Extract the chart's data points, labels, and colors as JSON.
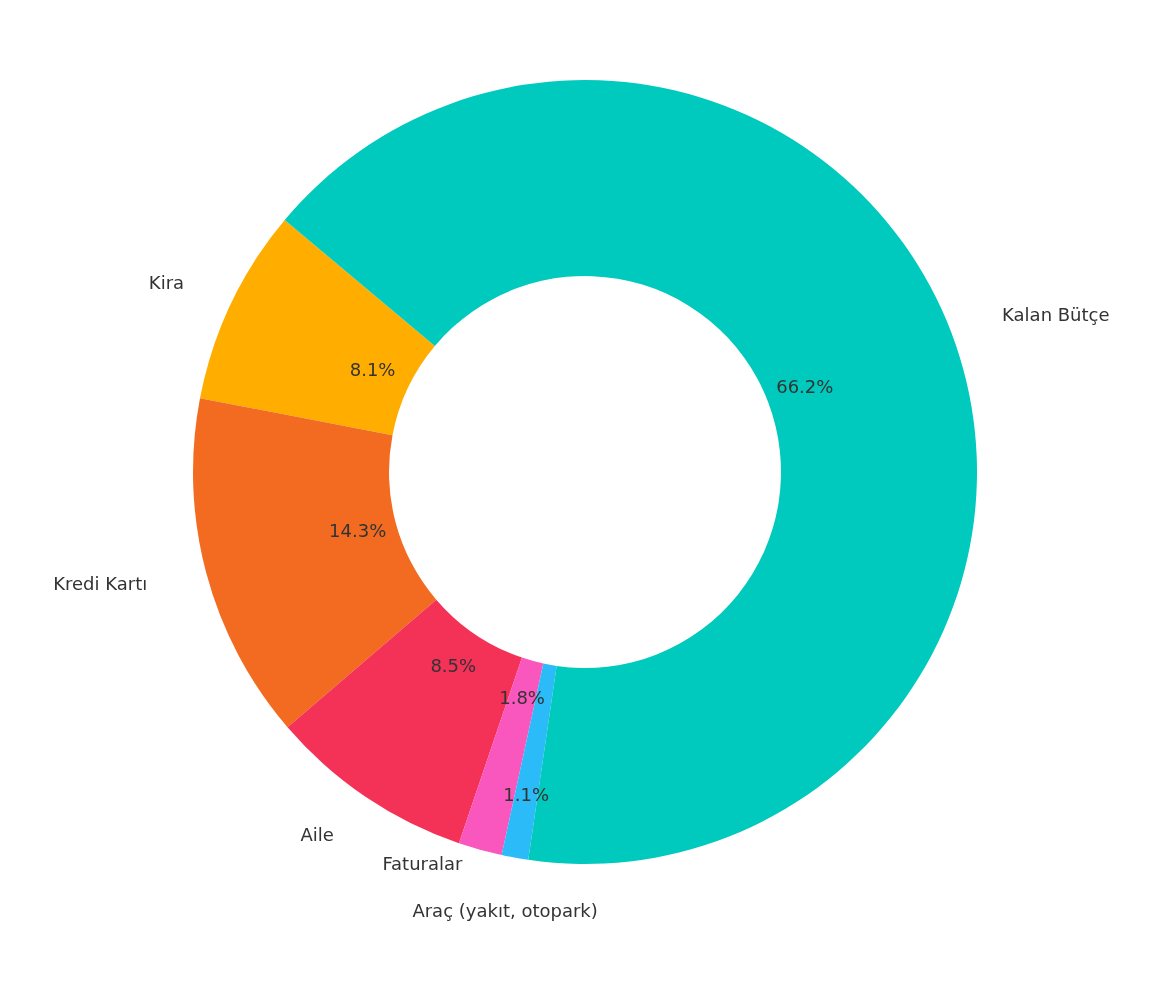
{
  "chart_data": {
    "type": "donut",
    "categories": [
      "Kira",
      "Kredi Kartı",
      "Aile",
      "Faturalar",
      "Araç (yakıt, otopark)",
      "Kalan Bütçe"
    ],
    "values": [
      8.1,
      14.3,
      8.5,
      1.8,
      1.1,
      66.2
    ],
    "value_labels": [
      "8.1%",
      "14.3%",
      "8.5%",
      "1.8%",
      "1.1%",
      "66.2%"
    ],
    "colors": [
      "#ffae00",
      "#f26b21",
      "#f43157",
      "#f956be",
      "#2bbbf8",
      "#00c9bd"
    ]
  }
}
